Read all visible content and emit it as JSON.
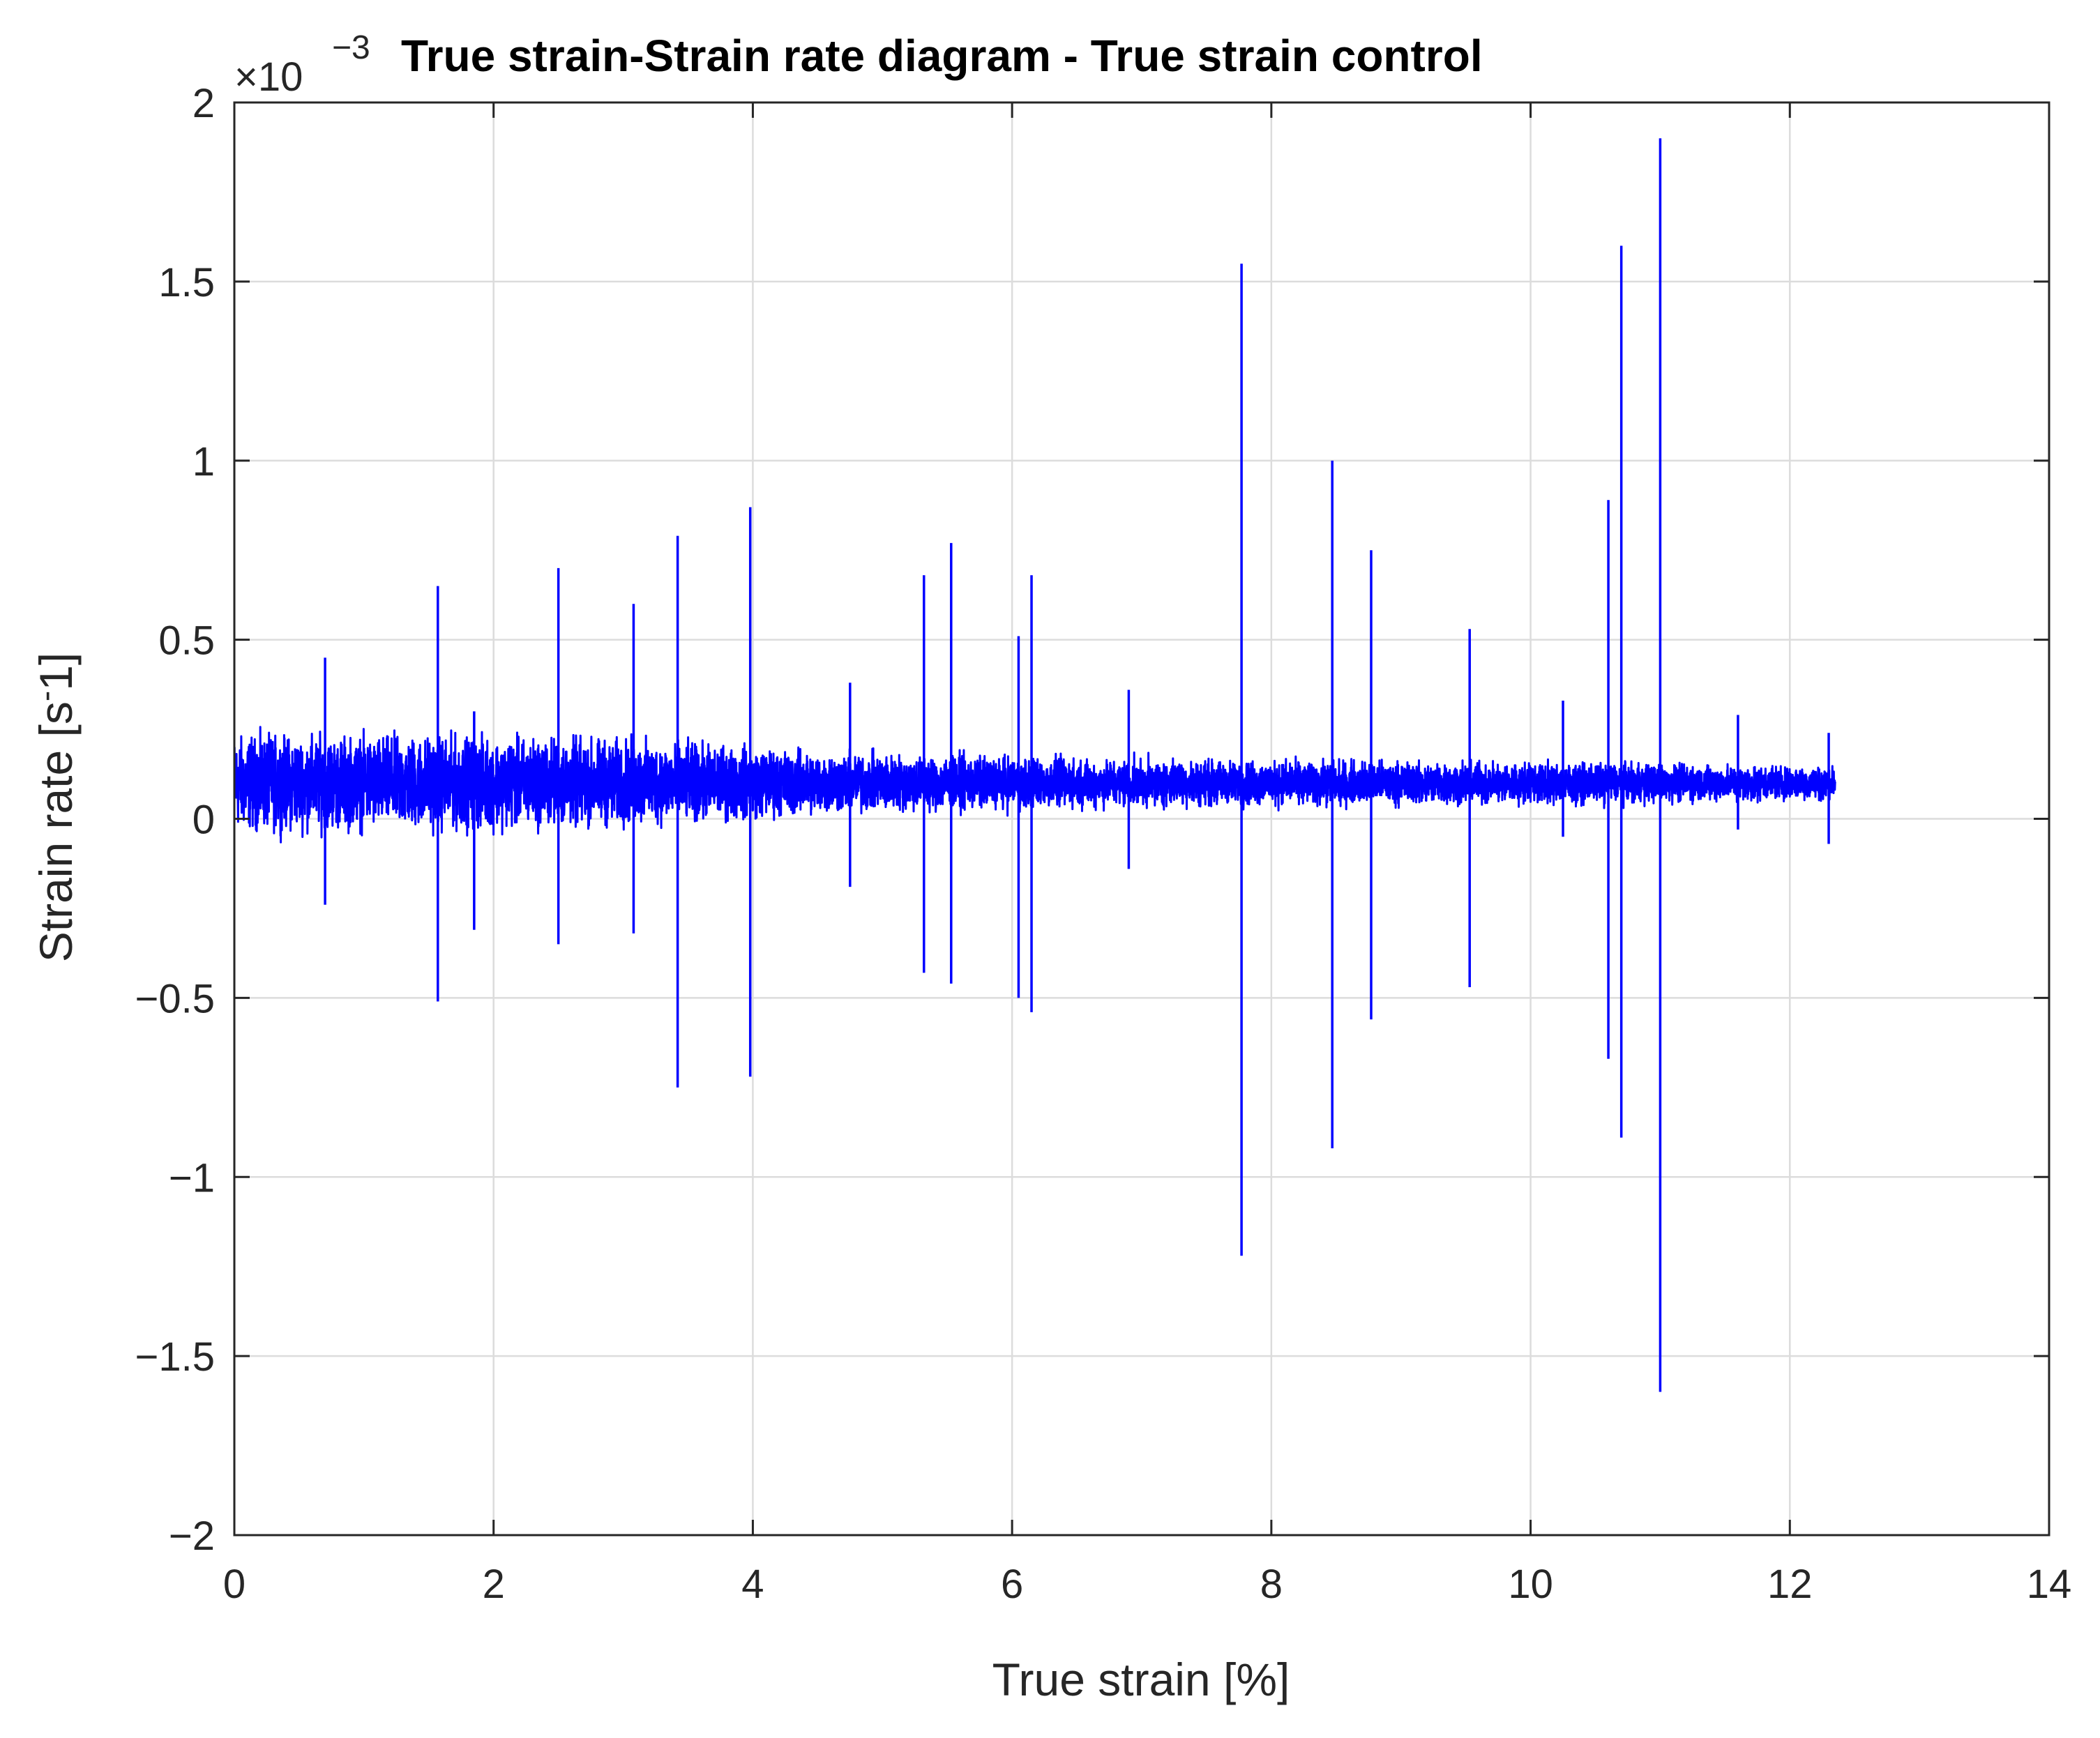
{
  "chart_data": {
    "type": "line",
    "title": "True strain-Strain rate diagram - True strain control",
    "xlabel": "True strain [%]",
    "ylabel_main": "Strain rate [s",
    "ylabel_sup": "-",
    "ylabel_end": "1]",
    "y_exponent_base": "×10",
    "y_exponent_power": "−3",
    "xlim": [
      0,
      14
    ],
    "ylim": [
      -2,
      2
    ],
    "x_ticks": [
      0,
      2,
      4,
      6,
      8,
      10,
      12,
      14
    ],
    "x_tick_labels": [
      "0",
      "2",
      "4",
      "6",
      "8",
      "10",
      "12",
      "14"
    ],
    "y_ticks": [
      -2,
      -1.5,
      -1,
      -0.5,
      0,
      0.5,
      1,
      1.5,
      2
    ],
    "y_tick_labels": [
      "−2",
      "−1.5",
      "−1",
      "−0.5",
      "0",
      "0.5",
      "1",
      "1.5",
      "2"
    ],
    "grid": true,
    "line_color": "#0000ff",
    "series": [
      {
        "x_start": 0,
        "x_end": 12.35,
        "baseline": 0.1,
        "noise_envelope": [
          [
            0,
            0.14
          ],
          [
            1.5,
            0.14
          ],
          [
            3.0,
            0.13
          ],
          [
            3.4,
            0.12
          ],
          [
            4.7,
            0.09
          ],
          [
            7.0,
            0.07
          ],
          [
            10.5,
            0.06
          ],
          [
            12.35,
            0.05
          ]
        ],
        "spikes": [
          {
            "x": 0.7,
            "max": 0.45,
            "min": -0.24
          },
          {
            "x": 1.57,
            "max": 0.65,
            "min": -0.51
          },
          {
            "x": 1.85,
            "max": 0.3,
            "min": -0.31
          },
          {
            "x": 2.5,
            "max": 0.7,
            "min": -0.35
          },
          {
            "x": 3.08,
            "max": 0.6,
            "min": -0.32
          },
          {
            "x": 3.42,
            "max": 0.79,
            "min": -0.75
          },
          {
            "x": 3.98,
            "max": 0.87,
            "min": -0.72
          },
          {
            "x": 4.75,
            "max": 0.38,
            "min": -0.19
          },
          {
            "x": 5.32,
            "max": 0.68,
            "min": -0.43
          },
          {
            "x": 5.53,
            "max": 0.77,
            "min": -0.46
          },
          {
            "x": 6.05,
            "max": 0.51,
            "min": -0.5
          },
          {
            "x": 6.15,
            "max": 0.68,
            "min": -0.54
          },
          {
            "x": 6.9,
            "max": 0.36,
            "min": -0.14
          },
          {
            "x": 7.77,
            "max": 1.55,
            "min": -1.22
          },
          {
            "x": 8.47,
            "max": 1.0,
            "min": -0.92
          },
          {
            "x": 8.77,
            "max": 0.75,
            "min": -0.56
          },
          {
            "x": 9.53,
            "max": 0.53,
            "min": -0.47
          },
          {
            "x": 10.25,
            "max": 0.33,
            "min": -0.05
          },
          {
            "x": 10.6,
            "max": 0.89,
            "min": -0.67
          },
          {
            "x": 10.7,
            "max": 1.6,
            "min": -0.89
          },
          {
            "x": 11.0,
            "max": 1.9,
            "min": -1.6
          },
          {
            "x": 11.6,
            "max": 0.29,
            "min": -0.03
          },
          {
            "x": 12.3,
            "max": 0.24,
            "min": -0.07
          }
        ]
      }
    ]
  }
}
